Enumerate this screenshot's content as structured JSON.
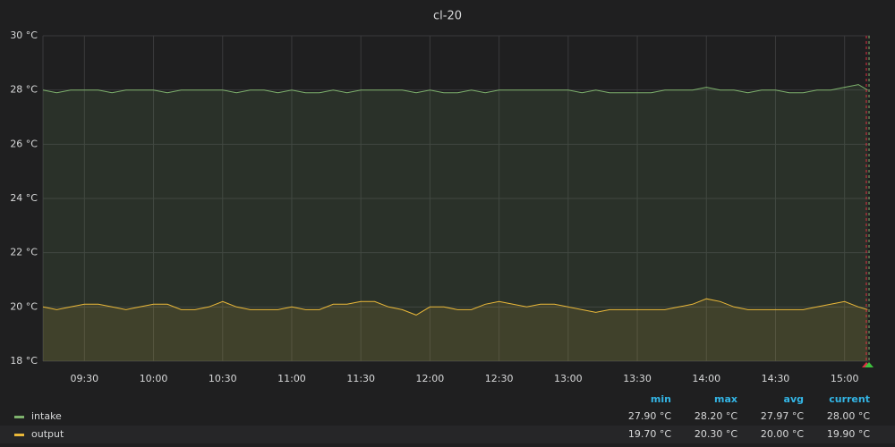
{
  "chart_data": {
    "type": "line",
    "title": "cl-20",
    "x": [
      "09:12",
      "09:18",
      "09:24",
      "09:30",
      "09:36",
      "09:42",
      "09:48",
      "09:54",
      "10:00",
      "10:06",
      "10:12",
      "10:18",
      "10:24",
      "10:30",
      "10:36",
      "10:42",
      "10:48",
      "10:54",
      "11:00",
      "11:06",
      "11:12",
      "11:18",
      "11:24",
      "11:30",
      "11:36",
      "11:42",
      "11:48",
      "11:54",
      "12:00",
      "12:06",
      "12:12",
      "12:18",
      "12:24",
      "12:30",
      "12:36",
      "12:42",
      "12:48",
      "12:54",
      "13:00",
      "13:06",
      "13:12",
      "13:18",
      "13:24",
      "13:30",
      "13:36",
      "13:42",
      "13:48",
      "13:54",
      "14:00",
      "14:06",
      "14:12",
      "14:18",
      "14:24",
      "14:30",
      "14:36",
      "14:42",
      "14:48",
      "14:54",
      "15:00",
      "15:06",
      "15:10"
    ],
    "series": [
      {
        "name": "intake",
        "color": "#7eb26d",
        "values": [
          28.0,
          27.9,
          28.0,
          28.0,
          28.0,
          27.9,
          28.0,
          28.0,
          28.0,
          27.9,
          28.0,
          28.0,
          28.0,
          28.0,
          27.9,
          28.0,
          28.0,
          27.9,
          28.0,
          27.9,
          27.9,
          28.0,
          27.9,
          28.0,
          28.0,
          28.0,
          28.0,
          27.9,
          28.0,
          27.9,
          27.9,
          28.0,
          27.9,
          28.0,
          28.0,
          28.0,
          28.0,
          28.0,
          28.0,
          27.9,
          28.0,
          27.9,
          27.9,
          27.9,
          27.9,
          28.0,
          28.0,
          28.0,
          28.1,
          28.0,
          28.0,
          27.9,
          28.0,
          28.0,
          27.9,
          27.9,
          28.0,
          28.0,
          28.1,
          28.2,
          28.0
        ]
      },
      {
        "name": "output",
        "color": "#eab839",
        "values": [
          20.0,
          19.9,
          20.0,
          20.1,
          20.1,
          20.0,
          19.9,
          20.0,
          20.1,
          20.1,
          19.9,
          19.9,
          20.0,
          20.2,
          20.0,
          19.9,
          19.9,
          19.9,
          20.0,
          19.9,
          19.9,
          20.1,
          20.1,
          20.2,
          20.2,
          20.0,
          19.9,
          19.7,
          20.0,
          20.0,
          19.9,
          19.9,
          20.1,
          20.2,
          20.1,
          20.0,
          20.1,
          20.1,
          20.0,
          19.9,
          19.8,
          19.9,
          19.9,
          19.9,
          19.9,
          19.9,
          20.0,
          20.1,
          20.3,
          20.2,
          20.0,
          19.9,
          19.9,
          19.9,
          19.9,
          19.9,
          20.0,
          20.1,
          20.2,
          20.0,
          19.9
        ]
      }
    ],
    "xlim": [
      "09:12",
      "15:11"
    ],
    "xticks": [
      "09:30",
      "10:00",
      "10:30",
      "11:00",
      "11:30",
      "12:00",
      "12:30",
      "13:00",
      "13:30",
      "14:00",
      "14:30",
      "15:00"
    ],
    "ylim": [
      18,
      30
    ],
    "yticks": [
      {
        "value": 18,
        "label": "18 °C"
      },
      {
        "value": 20,
        "label": "20 °C"
      },
      {
        "value": 22,
        "label": "22 °C"
      },
      {
        "value": 24,
        "label": "24 °C"
      },
      {
        "value": 26,
        "label": "26 °C"
      },
      {
        "value": 28,
        "label": "28 °C"
      },
      {
        "value": 30,
        "label": "30 °C"
      }
    ],
    "grid": true,
    "legend_stats": {
      "columns": [
        "min",
        "max",
        "avg",
        "current"
      ],
      "rows": [
        [
          "27.90 °C",
          "28.20 °C",
          "27.97 °C",
          "28.00 °C"
        ],
        [
          "19.70 °C",
          "20.30 °C",
          "20.00 °C",
          "19.90 °C"
        ]
      ]
    }
  }
}
